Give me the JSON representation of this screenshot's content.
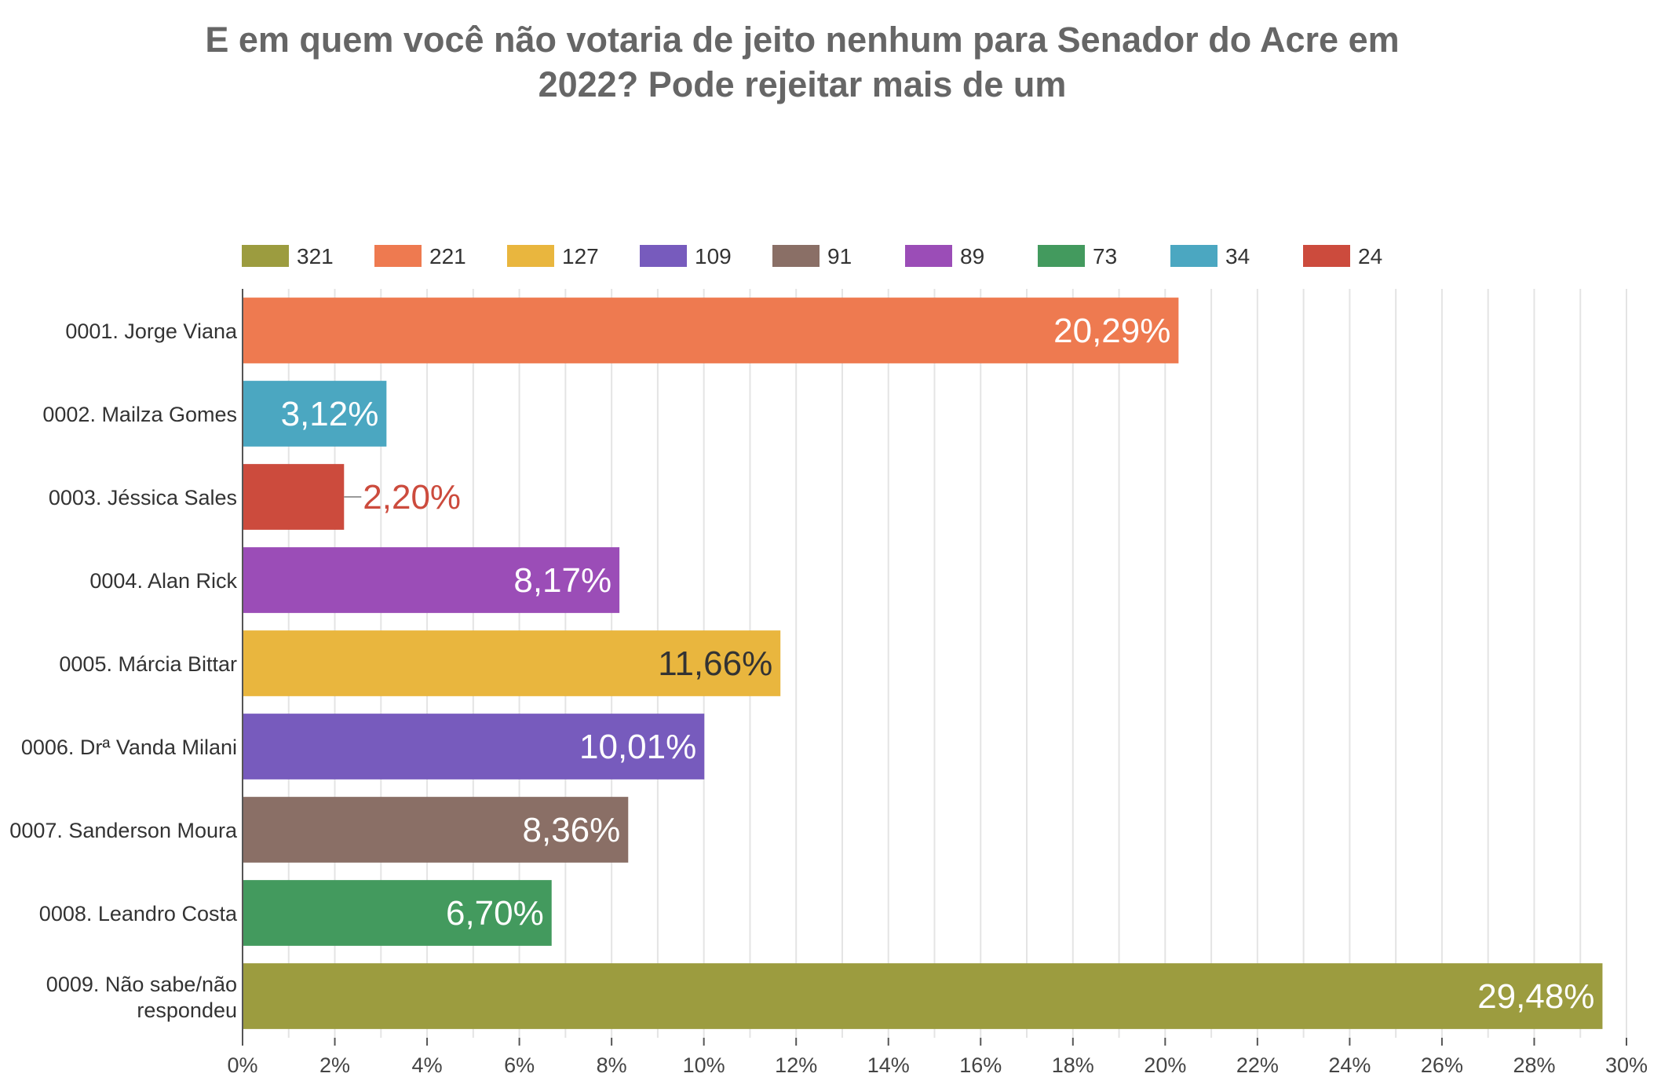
{
  "chart_data": {
    "type": "bar",
    "orientation": "horizontal",
    "title_line1": "E em quem você não votaria de jeito nenhum para Senador do Acre em",
    "title_line2": "2022? Pode rejeitar mais de um",
    "categories": [
      [
        "0001. Jorge Viana"
      ],
      [
        "0002. Mailza Gomes"
      ],
      [
        "0003. Jéssica Sales"
      ],
      [
        "0004. Alan Rick"
      ],
      [
        "0005. Márcia Bittar"
      ],
      [
        "0006. Drª Vanda Milani"
      ],
      [
        "0007. Sanderson Moura"
      ],
      [
        "0008. Leandro Costa"
      ],
      [
        "0009. Não sabe/não",
        "respondeu"
      ]
    ],
    "values": [
      20.29,
      3.12,
      2.2,
      8.17,
      11.66,
      10.01,
      8.36,
      6.7,
      29.48
    ],
    "value_labels": [
      "20,29%",
      "3,12%",
      "2,20%",
      "8,17%",
      "11,66%",
      "10,01%",
      "8,36%",
      "6,70%",
      "29,48%"
    ],
    "bar_colors": [
      "#ee7a50",
      "#4ba7c1",
      "#cc4b3d",
      "#9b4db7",
      "#e9b63e",
      "#775bbd",
      "#8a6f66",
      "#439a5e",
      "#9c9c3f"
    ],
    "label_colors": [
      "#ffffff",
      "#ffffff",
      "#cc4b3d",
      "#ffffff",
      "#333333",
      "#ffffff",
      "#ffffff",
      "#ffffff",
      "#ffffff"
    ],
    "label_outside": [
      false,
      false,
      true,
      false,
      false,
      false,
      false,
      false,
      false
    ],
    "legend": [
      {
        "name": "321",
        "color": "#9c9c3f"
      },
      {
        "name": "221",
        "color": "#ee7a50"
      },
      {
        "name": "127",
        "color": "#e9b63e"
      },
      {
        "name": "109",
        "color": "#775bbd"
      },
      {
        "name": "91",
        "color": "#8a6f66"
      },
      {
        "name": "89",
        "color": "#9b4db7"
      },
      {
        "name": "73",
        "color": "#439a5e"
      },
      {
        "name": "34",
        "color": "#4ba7c1"
      },
      {
        "name": "24",
        "color": "#cc4b3d"
      }
    ],
    "legend_position": "top",
    "xlim": [
      0,
      30
    ],
    "x_ticks": [
      0,
      2,
      4,
      6,
      8,
      10,
      12,
      14,
      16,
      18,
      20,
      22,
      24,
      26,
      28,
      30
    ],
    "x_tick_labels": [
      "0%",
      "2%",
      "4%",
      "6%",
      "8%",
      "10%",
      "12%",
      "14%",
      "16%",
      "18%",
      "20%",
      "22%",
      "24%",
      "26%",
      "28%",
      "30%"
    ],
    "grid": true
  }
}
